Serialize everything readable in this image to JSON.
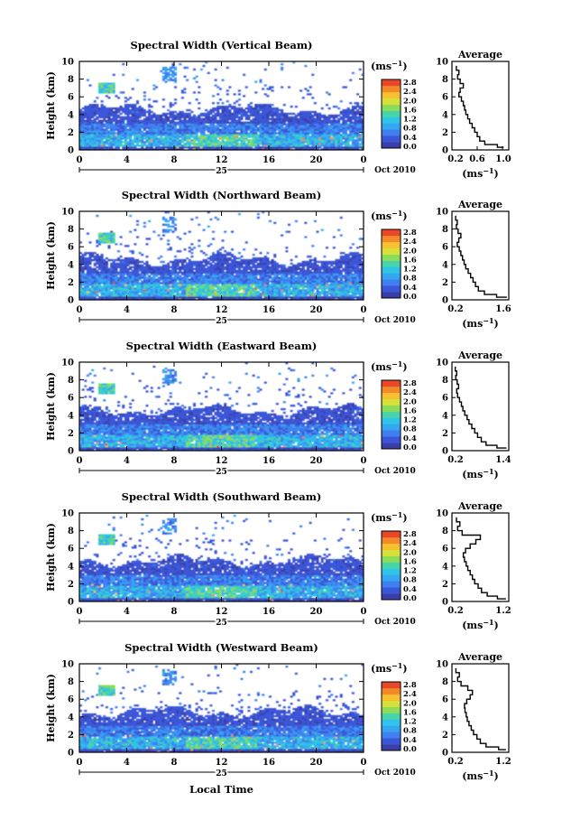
{
  "figure": {
    "xlabel": "Local Time",
    "date_label": "Oct 2010",
    "day_label": "25",
    "height_label": "Height (km)",
    "avg_title": "Average",
    "units_base": "(ms",
    "units_exp": "−1",
    "units_close": ")",
    "colors": {
      "scale": [
        "#3a3fa8",
        "#3b56d8",
        "#3f7ff0",
        "#35a6f0",
        "#2fc4e8",
        "#47d4a8",
        "#8cdc5a",
        "#d8e03a",
        "#f6c030",
        "#f28a2a",
        "#e84828"
      ],
      "none": "#ffffff"
    }
  },
  "chart_data": [
    {
      "type": "heatmap",
      "title": "Spectral Width (Vertical Beam)",
      "xlabel": "Local Time",
      "ylabel": "Height (km)",
      "xlim": [
        0,
        24
      ],
      "ylim": [
        0,
        10
      ],
      "xticks": [
        "0",
        "4",
        "8",
        "12",
        "16",
        "20",
        "0"
      ],
      "yticks": [
        "0",
        "2",
        "4",
        "6",
        "8",
        "10"
      ],
      "colorbar": {
        "label": "(ms⁻¹)",
        "ticks": [
          "0.0",
          "0.4",
          "0.8",
          "1.2",
          "1.6",
          "2.0",
          "2.4",
          "2.8"
        ],
        "range": [
          0,
          3.0
        ]
      },
      "profile": {
        "title": "Average",
        "xlabel": "(ms⁻¹)",
        "ylabel": "Height (km)",
        "xlim": [
          0.2,
          1.1
        ],
        "xticks": [
          "0.2",
          "0.6",
          "1.0"
        ],
        "ylim": [
          0,
          10
        ],
        "yticks": [
          "0",
          "2",
          "4",
          "6",
          "8",
          "10"
        ],
        "height": [
          0.3,
          0.6,
          1.0,
          1.5,
          2.0,
          2.5,
          3.0,
          3.5,
          4.0,
          4.5,
          5.0,
          5.5,
          6.0,
          6.5,
          7.0,
          7.5,
          8.0,
          8.5,
          9.0,
          9.5
        ],
        "width": [
          1.02,
          0.92,
          0.72,
          0.64,
          0.6,
          0.56,
          0.52,
          0.48,
          0.45,
          0.42,
          0.4,
          0.38,
          0.35,
          0.31,
          0.33,
          0.38,
          0.33,
          0.29,
          0.31,
          0.27
        ]
      }
    },
    {
      "type": "heatmap",
      "title": "Spectral Width (Northward Beam)",
      "xlabel": "Local Time",
      "ylabel": "Height (km)",
      "xlim": [
        0,
        24
      ],
      "ylim": [
        0,
        10
      ],
      "xticks": [
        "0",
        "4",
        "8",
        "12",
        "16",
        "20",
        "0"
      ],
      "yticks": [
        "0",
        "2",
        "4",
        "6",
        "8",
        "10"
      ],
      "colorbar": {
        "label": "(ms⁻¹)",
        "ticks": [
          "0.0",
          "0.4",
          "0.8",
          "1.2",
          "1.6",
          "2.0",
          "2.4",
          "2.8"
        ],
        "range": [
          0,
          3.0
        ]
      },
      "profile": {
        "title": "Average",
        "xlabel": "(ms⁻¹)",
        "ylabel": "Height (km)",
        "xlim": [
          0.2,
          1.6
        ],
        "xticks": [
          "0.2",
          "1.6"
        ],
        "ylim": [
          0,
          10
        ],
        "yticks": [
          "0",
          "2",
          "4",
          "6",
          "8",
          "10"
        ],
        "height": [
          0.3,
          0.6,
          1.0,
          1.5,
          2.0,
          2.5,
          3.0,
          3.5,
          4.0,
          4.5,
          5.0,
          5.5,
          6.0,
          6.5,
          7.0,
          7.5,
          8.0,
          8.5,
          9.0,
          9.5
        ],
        "width": [
          1.55,
          1.3,
          1.0,
          0.85,
          0.78,
          0.72,
          0.66,
          0.6,
          0.54,
          0.5,
          0.46,
          0.42,
          0.38,
          0.33,
          0.37,
          0.42,
          0.35,
          0.31,
          0.33,
          0.29
        ]
      }
    },
    {
      "type": "heatmap",
      "title": "Spectral Width (Eastward Beam)",
      "xlabel": "Local Time",
      "ylabel": "Height (km)",
      "xlim": [
        0,
        24
      ],
      "ylim": [
        0,
        10
      ],
      "xticks": [
        "0",
        "4",
        "8",
        "12",
        "16",
        "20",
        "0"
      ],
      "yticks": [
        "0",
        "2",
        "4",
        "6",
        "8",
        "10"
      ],
      "colorbar": {
        "label": "(ms⁻¹)",
        "ticks": [
          "0.0",
          "0.4",
          "0.8",
          "1.2",
          "1.6",
          "2.0",
          "2.4",
          "2.8"
        ],
        "range": [
          0,
          3.0
        ]
      },
      "profile": {
        "title": "Average",
        "xlabel": "(ms⁻¹)",
        "ylabel": "Height (km)",
        "xlim": [
          0.2,
          1.4
        ],
        "xticks": [
          "0.2",
          "1.4"
        ],
        "ylim": [
          0,
          10
        ],
        "yticks": [
          "0",
          "2",
          "4",
          "6",
          "8",
          "10"
        ],
        "height": [
          0.3,
          0.6,
          1.0,
          1.5,
          2.0,
          2.5,
          3.0,
          3.5,
          4.0,
          4.5,
          5.0,
          5.5,
          6.0,
          6.5,
          7.0,
          7.5,
          8.0,
          8.5,
          9.0,
          9.5
        ],
        "width": [
          1.35,
          1.15,
          0.92,
          0.82,
          0.74,
          0.68,
          0.62,
          0.56,
          0.52,
          0.47,
          0.43,
          0.4,
          0.36,
          0.32,
          0.3,
          0.34,
          0.31,
          0.28,
          0.3,
          0.27
        ]
      }
    },
    {
      "type": "heatmap",
      "title": "Spectral Width (Southward Beam)",
      "xlabel": "Local Time",
      "ylabel": "Height (km)",
      "xlim": [
        0,
        24
      ],
      "ylim": [
        0,
        10
      ],
      "xticks": [
        "0",
        "4",
        "8",
        "12",
        "16",
        "20",
        "0"
      ],
      "yticks": [
        "0",
        "2",
        "4",
        "6",
        "8",
        "10"
      ],
      "colorbar": {
        "label": "(ms⁻¹)",
        "ticks": [
          "0.0",
          "0.4",
          "0.8",
          "1.2",
          "1.6",
          "2.0",
          "2.4",
          "2.8"
        ],
        "range": [
          0,
          3.0
        ]
      },
      "profile": {
        "title": "Average",
        "xlabel": "(ms⁻¹)",
        "ylabel": "Height (km)",
        "xlim": [
          0.2,
          1.2
        ],
        "xticks": [
          "0.2",
          "1.2"
        ],
        "ylim": [
          0,
          10
        ],
        "yticks": [
          "0",
          "2",
          "4",
          "6",
          "8",
          "10"
        ],
        "height": [
          0.3,
          0.6,
          1.0,
          1.5,
          2.0,
          2.5,
          3.0,
          3.5,
          4.0,
          4.5,
          5.0,
          5.5,
          6.0,
          6.5,
          7.0,
          7.5,
          8.0,
          8.5,
          9.0,
          9.5
        ],
        "width": [
          1.15,
          1.0,
          0.82,
          0.72,
          0.66,
          0.6,
          0.56,
          0.52,
          0.48,
          0.45,
          0.42,
          0.4,
          0.44,
          0.52,
          0.62,
          0.7,
          0.38,
          0.3,
          0.34,
          0.28
        ]
      }
    },
    {
      "type": "heatmap",
      "title": "Spectral Width (Westward Beam)",
      "xlabel": "Local Time",
      "ylabel": "Height (km)",
      "xlim": [
        0,
        24
      ],
      "ylim": [
        0,
        10
      ],
      "xticks": [
        "0",
        "4",
        "8",
        "12",
        "16",
        "20",
        "0"
      ],
      "yticks": [
        "0",
        "2",
        "4",
        "6",
        "8",
        "10"
      ],
      "colorbar": {
        "label": "(ms⁻¹)",
        "ticks": [
          "0.0",
          "0.4",
          "0.8",
          "1.2",
          "1.6",
          "2.0",
          "2.4",
          "2.8"
        ],
        "range": [
          0,
          3.0
        ]
      },
      "profile": {
        "title": "Average",
        "xlabel": "(ms⁻¹)",
        "ylabel": "Height (km)",
        "xlim": [
          0.2,
          1.2
        ],
        "xticks": [
          "0.2",
          "1.2"
        ],
        "ylim": [
          0,
          10
        ],
        "yticks": [
          "0",
          "2",
          "4",
          "6",
          "8",
          "10"
        ],
        "height": [
          0.3,
          0.6,
          1.0,
          1.5,
          2.0,
          2.5,
          3.0,
          3.5,
          4.0,
          4.5,
          5.0,
          5.5,
          6.0,
          6.5,
          7.0,
          7.5,
          8.0,
          8.5,
          9.0,
          9.5
        ],
        "width": [
          1.15,
          1.02,
          0.8,
          0.7,
          0.64,
          0.58,
          0.54,
          0.5,
          0.47,
          0.45,
          0.43,
          0.42,
          0.46,
          0.52,
          0.56,
          0.48,
          0.36,
          0.3,
          0.33,
          0.27
        ]
      }
    }
  ]
}
